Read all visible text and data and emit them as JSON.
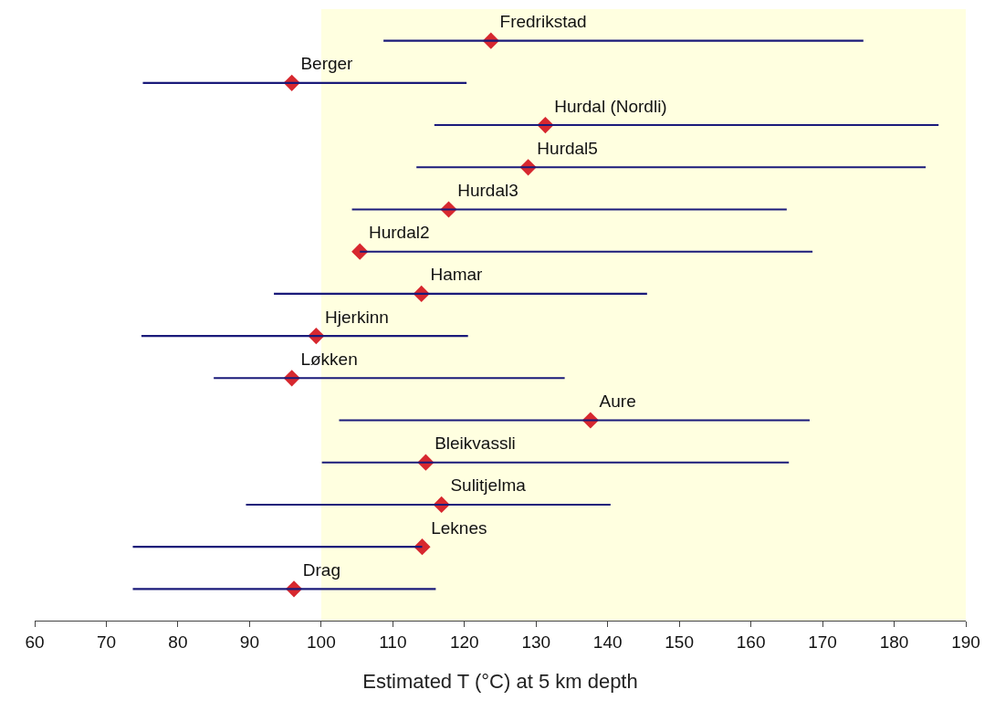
{
  "chart_data": {
    "type": "bar",
    "orientation": "horizontal",
    "xlabel": "Estimated T (°C) at 5 km depth",
    "categories": [
      "Fredrikstad",
      "Berger",
      "Hurdal (Nordli)",
      "Hurdal5",
      "Hurdal3",
      "Hurdal2",
      "Hamar",
      "Hjerkinn",
      "Løkken",
      "Aure",
      "Bleikvassli",
      "Sulitjelma",
      "Leknes",
      "Drag"
    ],
    "series": [
      {
        "color": "#1a1a7a",
        "base": [
          108.7,
          75.1,
          115.8,
          113.3,
          104.3,
          105.4,
          93.4,
          74.9,
          85.0,
          102.5,
          100.1,
          89.5,
          73.7,
          73.7
        ],
        "values": [
          67.0,
          45.2,
          70.4,
          71.1,
          60.7,
          63.2,
          52.1,
          45.6,
          49.0,
          65.7,
          65.2,
          50.9,
          40.4,
          42.3
        ]
      },
      {
        "type": "scatter",
        "color": "#d7282f",
        "marker": "diamond",
        "values": [
          123.7,
          95.9,
          131.3,
          128.9,
          117.8,
          105.4,
          114.0,
          99.3,
          95.9,
          137.6,
          114.6,
          116.8,
          114.1,
          96.2
        ]
      }
    ],
    "xlim": [
      60,
      190
    ],
    "xticks": [
      60,
      70,
      80,
      90,
      100,
      110,
      120,
      130,
      140,
      150,
      160,
      170,
      180,
      190
    ],
    "bands": [
      {
        "axis": "x",
        "from": 100,
        "to": 190,
        "color": "#ffffe0"
      }
    ],
    "tick_labels": "x",
    "grid": false
  }
}
